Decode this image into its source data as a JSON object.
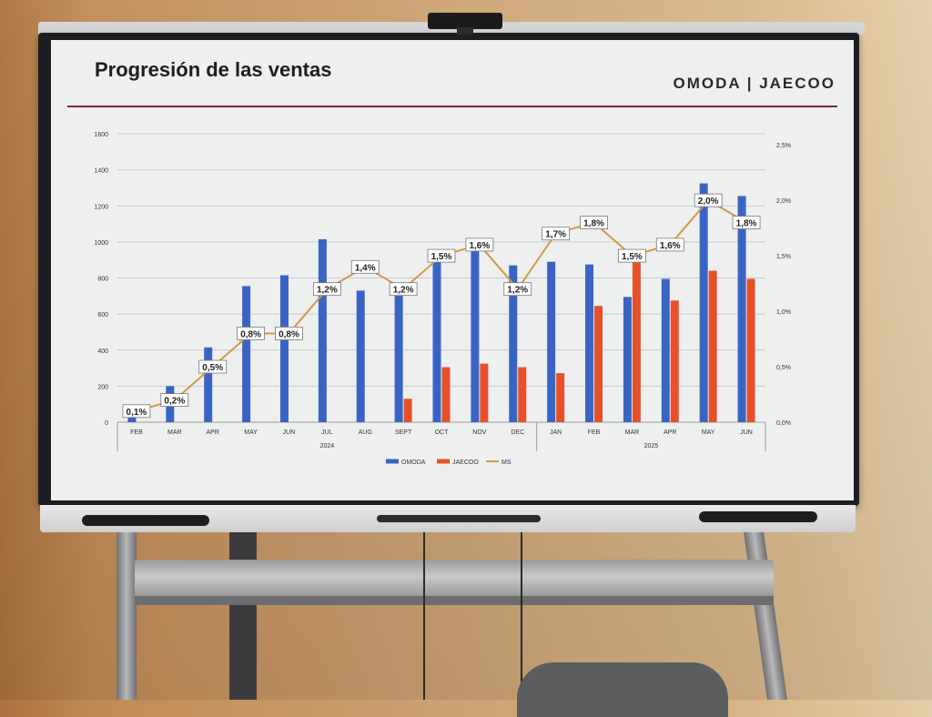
{
  "slide": {
    "title": "Progresión de las ventas",
    "logo": "OMODA | JAECOO"
  },
  "chart_data": {
    "type": "bar",
    "categories": [
      "FEB",
      "MAR",
      "APR",
      "MAY",
      "JUN",
      "JUL",
      "AUG",
      "SEPT",
      "OCT",
      "NOV",
      "DEC",
      "JAN",
      "FEB",
      "MAR",
      "APR",
      "MAY",
      "JUN"
    ],
    "groups": [
      {
        "label": "2024",
        "span": 11
      },
      {
        "label": "2025",
        "span": 6
      }
    ],
    "series": [
      {
        "name": "OMODA",
        "type": "bar",
        "axis": "left",
        "color": "#3a64c4",
        "values": [
          40,
          200,
          415,
          755,
          815,
          1015,
          730,
          730,
          905,
          970,
          870,
          890,
          875,
          695,
          795,
          1325,
          1255
        ]
      },
      {
        "name": "JAECOO",
        "type": "bar",
        "axis": "left",
        "color": "#e4512a",
        "values": [
          0,
          0,
          0,
          0,
          0,
          0,
          0,
          130,
          305,
          325,
          305,
          272,
          645,
          885,
          675,
          840,
          795
        ]
      },
      {
        "name": "MS",
        "type": "line",
        "axis": "right",
        "color": "#d19a45",
        "values": [
          0.1,
          0.2,
          0.5,
          0.8,
          0.8,
          1.2,
          1.4,
          1.2,
          1.5,
          1.6,
          1.2,
          1.7,
          1.8,
          1.5,
          1.6,
          2.0,
          1.8
        ],
        "labels": [
          "0,1%",
          "0,2%",
          "0,5%",
          "0,8%",
          "0,8%",
          "1,2%",
          "1,4%",
          "1,2%",
          "1,5%",
          "1,6%",
          "1,2%",
          "1,7%",
          "1,8%",
          "1,5%",
          "1,6%",
          "2,0%",
          "1,8%"
        ]
      }
    ],
    "y_left": {
      "ticks": [
        "0",
        "200",
        "400",
        "600",
        "800",
        "1000",
        "1200",
        "1400",
        "1600"
      ],
      "min": 0,
      "max": 1600
    },
    "y_right": {
      "ticks": [
        "0,0%",
        "0,5%",
        "1,0%",
        "1,5%",
        "2,0%",
        "2,5%"
      ],
      "min": 0,
      "max": 2.6
    },
    "grid": true,
    "legend": "bottom"
  }
}
